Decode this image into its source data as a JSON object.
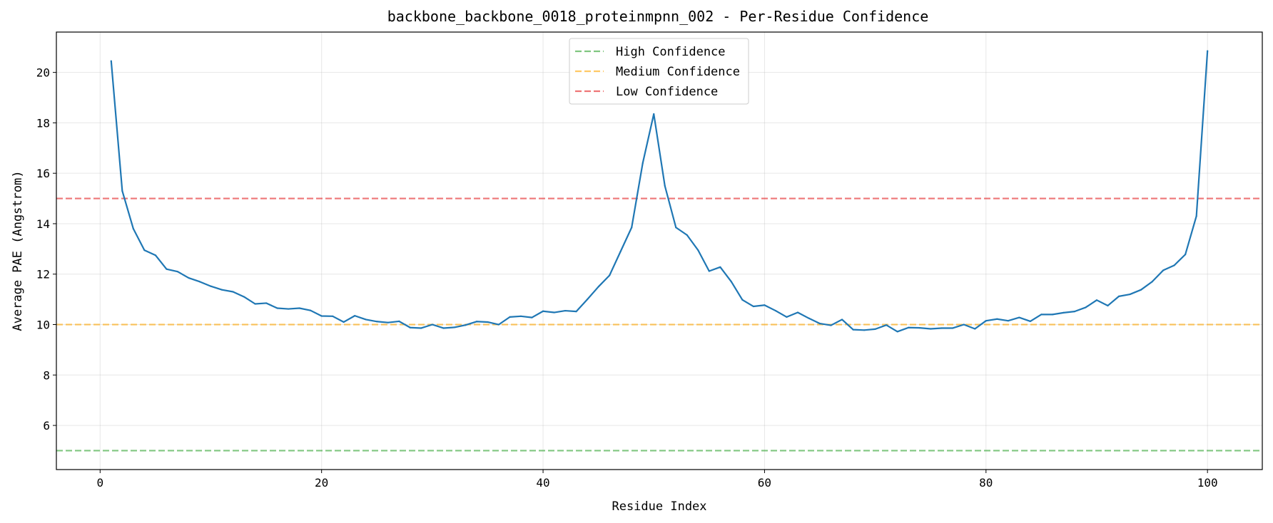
{
  "chart_data": {
    "type": "line",
    "title": "backbone_backbone_0018_proteinmpnn_002 - Per-Residue Confidence",
    "xlabel": "Residue Index",
    "ylabel": "Average PAE (Angstrom)",
    "xlim": [
      -3.95,
      104.95
    ],
    "ylim": [
      4.25,
      21.6
    ],
    "xticks": [
      0,
      20,
      40,
      60,
      80,
      100
    ],
    "yticks": [
      6,
      8,
      10,
      12,
      14,
      16,
      18,
      20
    ],
    "grid": true,
    "legend_position": "top-center",
    "series": [
      {
        "color": "#1f77b4",
        "x": [
          1,
          2,
          3,
          4,
          5,
          6,
          7,
          8,
          9,
          10,
          11,
          12,
          13,
          14,
          15,
          16,
          17,
          18,
          19,
          20,
          21,
          22,
          23,
          24,
          25,
          26,
          27,
          28,
          29,
          30,
          31,
          32,
          33,
          34,
          35,
          36,
          37,
          38,
          39,
          40,
          41,
          42,
          43,
          44,
          45,
          46,
          47,
          48,
          49,
          50,
          51,
          52,
          53,
          54,
          55,
          56,
          57,
          58,
          59,
          60,
          61,
          62,
          63,
          64,
          65,
          66,
          67,
          68,
          69,
          70,
          71,
          72,
          73,
          74,
          75,
          76,
          77,
          78,
          79,
          80,
          81,
          82,
          83,
          84,
          85,
          86,
          87,
          88,
          89,
          90,
          91,
          92,
          93,
          94,
          95,
          96,
          97,
          98,
          99,
          100
        ],
        "values": [
          20.45,
          15.3,
          13.8,
          12.95,
          12.75,
          12.2,
          12.1,
          11.85,
          11.7,
          11.52,
          11.38,
          11.3,
          11.1,
          10.82,
          10.85,
          10.65,
          10.62,
          10.65,
          10.56,
          10.34,
          10.33,
          10.1,
          10.35,
          10.2,
          10.12,
          10.08,
          10.13,
          9.88,
          9.86,
          10.0,
          9.86,
          9.89,
          9.98,
          10.12,
          10.1,
          10.0,
          10.3,
          10.33,
          10.28,
          10.53,
          10.48,
          10.55,
          10.52,
          11.0,
          11.5,
          11.95,
          12.9,
          13.85,
          16.4,
          18.35,
          15.5,
          13.85,
          13.55,
          12.95,
          12.12,
          12.28,
          11.7,
          10.98,
          10.72,
          10.77,
          10.55,
          10.3,
          10.48,
          10.25,
          10.04,
          9.97,
          10.2,
          9.8,
          9.78,
          9.82,
          9.98,
          9.72,
          9.88,
          9.87,
          9.83,
          9.86,
          9.86,
          10.0,
          9.83,
          10.15,
          10.22,
          10.15,
          10.28,
          10.13,
          10.4,
          10.4,
          10.47,
          10.52,
          10.68,
          10.97,
          10.75,
          11.12,
          11.2,
          11.38,
          11.7,
          12.15,
          12.35,
          12.78,
          14.3,
          20.85
        ]
      }
    ],
    "reference_lines": [
      {
        "label": "High Confidence",
        "y": 5,
        "color": "#2ca02c"
      },
      {
        "label": "Medium Confidence",
        "y": 10,
        "color": "#ffa500"
      },
      {
        "label": "Low Confidence",
        "y": 15,
        "color": "#e31a1c"
      }
    ]
  }
}
